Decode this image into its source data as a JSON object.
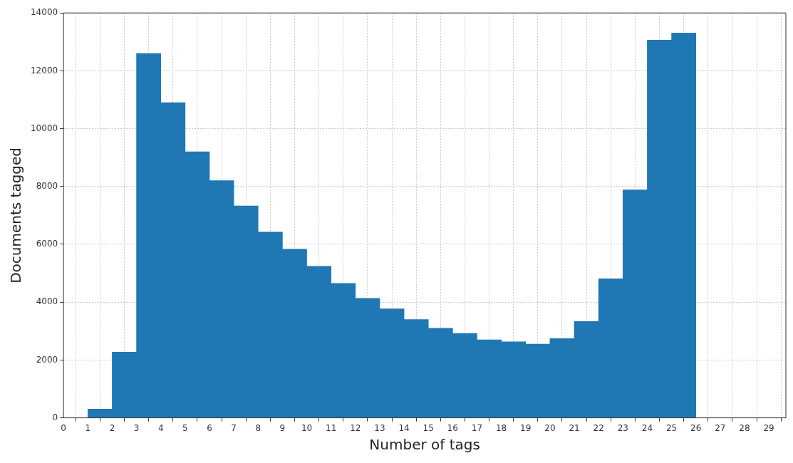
{
  "chart_data": {
    "type": "histogram",
    "xlabel": "Number of tags",
    "ylabel": "Documents tagged",
    "bins": [
      1,
      2,
      3,
      4,
      5,
      6,
      7,
      8,
      9,
      10,
      11,
      12,
      13,
      14,
      15,
      16,
      17,
      18,
      19,
      20,
      21,
      22,
      23,
      24,
      25,
      26
    ],
    "values": [
      300,
      2270,
      12600,
      10900,
      9200,
      8200,
      7330,
      6420,
      5830,
      5240,
      4650,
      4130,
      3770,
      3400,
      3100,
      2920,
      2700,
      2630,
      2550,
      2740,
      3330,
      4810,
      7880,
      13060,
      13310
    ],
    "color": "#1f77b4",
    "xlim": [
      0,
      29.7
    ],
    "xticks": [
      0,
      1,
      2,
      3,
      4,
      5,
      6,
      7,
      8,
      9,
      10,
      11,
      12,
      13,
      14,
      15,
      16,
      17,
      18,
      19,
      20,
      21,
      22,
      23,
      24,
      25,
      26,
      27,
      28,
      29
    ],
    "ylim": [
      0,
      14000
    ],
    "yticks": [
      0,
      2000,
      4000,
      6000,
      8000,
      10000,
      12000,
      14000
    ],
    "grid": true
  }
}
